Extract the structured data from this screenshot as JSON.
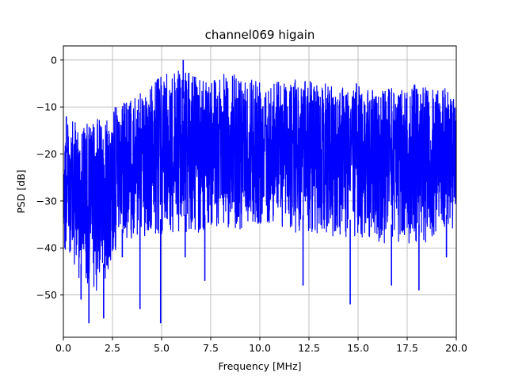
{
  "chart_data": {
    "type": "line",
    "title": "channel069 higain",
    "xlabel": "Frequency [MHz]",
    "ylabel": "PSD [dB]",
    "xlim": [
      0,
      20
    ],
    "ylim": [
      -59,
      3
    ],
    "xticks": [
      0.0,
      2.5,
      5.0,
      7.5,
      10.0,
      12.5,
      15.0,
      17.5,
      20.0
    ],
    "xtick_labels": [
      "0.0",
      "2.5",
      "5.0",
      "7.5",
      "10.0",
      "12.5",
      "15.0",
      "17.5",
      "20.0"
    ],
    "yticks": [
      0,
      -10,
      -20,
      -30,
      -40,
      -50
    ],
    "ytick_labels": [
      "0",
      "−10",
      "−20",
      "−30",
      "−40",
      "−50"
    ],
    "grid": true,
    "series": [
      {
        "color": "#0000ff",
        "envelope": {
          "x": [
            0,
            0.5,
            1,
            1.5,
            2,
            2.5,
            3,
            3.5,
            4,
            4.5,
            5,
            5.5,
            6,
            6.5,
            7,
            7.5,
            8,
            8.5,
            9,
            9.5,
            10,
            10.5,
            11,
            11.5,
            12,
            12.5,
            13,
            13.5,
            14,
            14.5,
            15,
            15.5,
            16,
            16.5,
            17,
            17.5,
            18,
            18.5,
            19,
            19.5,
            20
          ],
          "upper": [
            -14,
            -13,
            -14,
            -13,
            -12,
            -10,
            -9,
            -8,
            -7,
            -5,
            -3,
            -3,
            -2,
            -3,
            -3,
            -3,
            -3,
            -3,
            -3,
            -3,
            -3,
            -3,
            -4,
            -4,
            -4,
            -4,
            -5,
            -5,
            -5,
            -5,
            -5,
            -6,
            -6,
            -6,
            -6,
            -6,
            -5,
            -6,
            -6,
            -6,
            -7
          ],
          "lower": [
            -40,
            -45,
            -48,
            -50,
            -48,
            -42,
            -40,
            -38,
            -38,
            -37,
            -38,
            -38,
            -37,
            -37,
            -37,
            -37,
            -36,
            -36,
            -36,
            -35,
            -35,
            -35,
            -36,
            -36,
            -37,
            -37,
            -37,
            -37,
            -38,
            -38,
            -38,
            -38,
            -39,
            -39,
            -39,
            -39,
            -39,
            -39,
            -38,
            -37,
            -36
          ]
        },
        "spikes": [
          {
            "x": 1.3,
            "y": -56
          },
          {
            "x": 0.9,
            "y": -51
          },
          {
            "x": 2.05,
            "y": -55
          },
          {
            "x": 3.0,
            "y": -42
          },
          {
            "x": 3.9,
            "y": -53
          },
          {
            "x": 4.95,
            "y": -56
          },
          {
            "x": 6.2,
            "y": -42
          },
          {
            "x": 7.2,
            "y": -47
          },
          {
            "x": 12.2,
            "y": -48
          },
          {
            "x": 14.6,
            "y": -52
          },
          {
            "x": 16.7,
            "y": -48
          },
          {
            "x": 18.1,
            "y": -49
          },
          {
            "x": 19.5,
            "y": -42
          }
        ],
        "peaks": [
          {
            "x": 6.1,
            "y": 0
          },
          {
            "x": 0.15,
            "y": -12
          }
        ]
      }
    ]
  }
}
